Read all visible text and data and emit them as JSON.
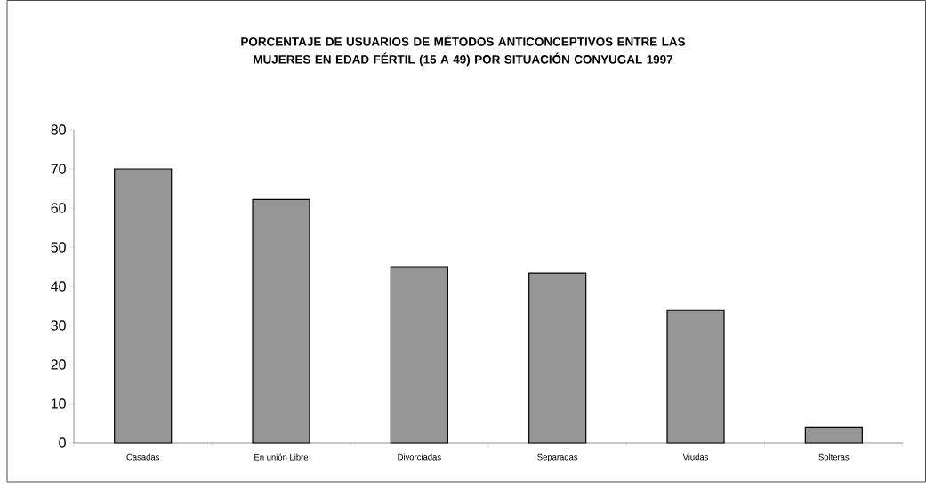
{
  "chart_data": {
    "type": "bar",
    "title": "PORCENTAJE DE USUARIOS DE MÉTODOS ANTICONCEPTIVOS ENTRE LAS MUJERES EN EDAD FÉRTIL (15 A 49) POR SITUACIÓN CONYUGAL 1997",
    "categories": [
      "Casadas",
      "En unión Libre",
      "Divorciadas",
      "Separadas",
      "Viudas",
      "Solteras"
    ],
    "values": [
      70,
      62.2,
      45,
      43.4,
      33.8,
      4
    ],
    "color": "#969696",
    "ylim": [
      0,
      80
    ],
    "yticks": [
      0,
      10,
      20,
      30,
      40,
      50,
      60,
      70,
      80
    ],
    "grid": false
  }
}
